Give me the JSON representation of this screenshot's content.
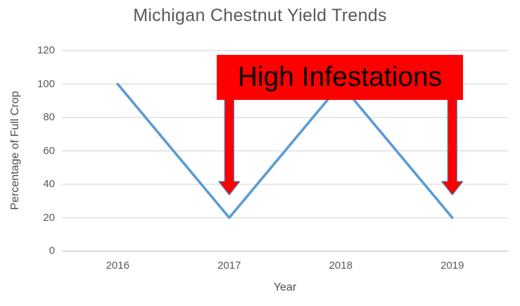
{
  "chart_data": {
    "type": "line",
    "title": "Michigan Chestnut Yield Trends",
    "xlabel": "Year",
    "ylabel": "Percentage of Full Crop",
    "categories": [
      "2016",
      "2017",
      "2018",
      "2019"
    ],
    "values": [
      100,
      20,
      100,
      20
    ],
    "ylim": [
      0,
      120
    ],
    "yticks": [
      0,
      20,
      40,
      60,
      80,
      100,
      120
    ],
    "grid": true,
    "legend": "none",
    "colors": {
      "line": "#5B9BD5",
      "gridline": "#D9D9D9",
      "axis_line": "#C6C6C6",
      "tick_text": "#595959",
      "title_text": "#595959",
      "annotation_fill": "#FF0000",
      "annotation_text": "#000000",
      "arrow_fill": "#FF0000",
      "arrow_outline": "#4A7EBB"
    },
    "annotation": {
      "label": "High Infestations",
      "arrow_target_categories": [
        "2017",
        "2019"
      ],
      "arrow_value_reached": 40
    }
  }
}
